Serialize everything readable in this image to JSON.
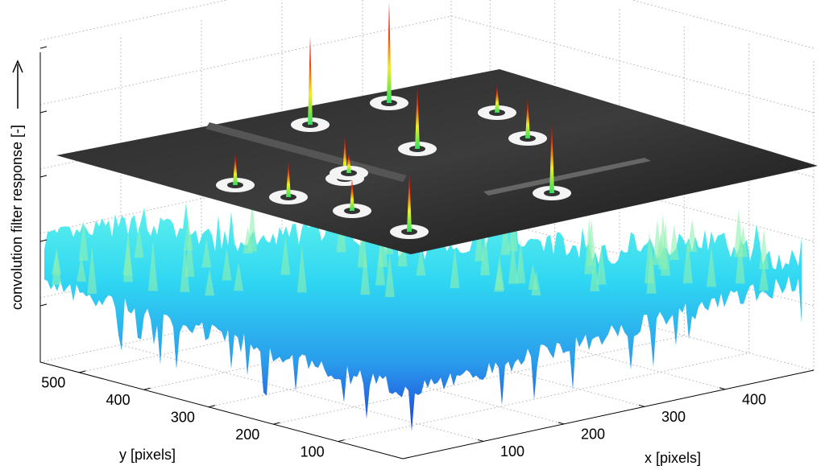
{
  "chart_data": {
    "type": "surface3d",
    "xlabel": "x [pixels]",
    "ylabel": "y [pixels]",
    "zlabel": "convolution filter response [-]",
    "xlim": [
      0,
      510
    ],
    "xticks": [
      100,
      200,
      300,
      400
    ],
    "ylim": [
      0,
      560
    ],
    "yticks": [
      100,
      200,
      300,
      400,
      500
    ],
    "grid": true
  }
}
